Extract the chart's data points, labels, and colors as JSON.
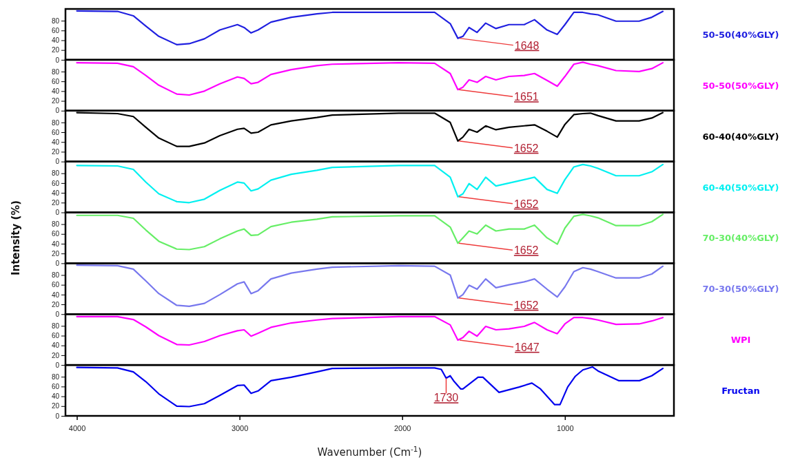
{
  "chart_data": [
    {
      "type": "line",
      "x": [
        4000,
        3750,
        3653,
        3576,
        3496,
        3386,
        3309,
        3216,
        3121,
        3013,
        2972,
        2929,
        2886,
        2807,
        2682,
        2525,
        2430,
        2021,
        1801,
        1705,
        1658,
        1627,
        1589,
        1540,
        1487,
        1424,
        1344,
        1250,
        1187,
        1110,
        1047,
        1000,
        945,
        890,
        843,
        797,
        686,
        544,
        466,
        398
      ],
      "xlim": [
        4070,
        330
      ],
      "ylim": [
        0,
        104
      ],
      "yticks": [
        0,
        20,
        40,
        60,
        80
      ],
      "tick_labels": "y",
      "legend": "right",
      "series": [
        {
          "name": "50-50(40%GLY)",
          "color": "#2020e0",
          "values": [
            100,
            99,
            90,
            69,
            48,
            31,
            33,
            43,
            61,
            72,
            66,
            55,
            61,
            77,
            87,
            94,
            97,
            97,
            97,
            74,
            44,
            48,
            66,
            56,
            75,
            64,
            72,
            72,
            82,
            61,
            52,
            72,
            97,
            97,
            94,
            92,
            79,
            79,
            87,
            99
          ]
        }
      ],
      "annotations": [
        {
          "text": "1648",
          "x": 1648,
          "y": 44
        }
      ]
    },
    {
      "type": "line",
      "x": [
        4000,
        3750,
        3653,
        3576,
        3496,
        3386,
        3309,
        3216,
        3121,
        3013,
        2972,
        2929,
        2886,
        2807,
        2682,
        2525,
        2430,
        2021,
        1801,
        1705,
        1658,
        1627,
        1589,
        1540,
        1487,
        1424,
        1344,
        1250,
        1187,
        1110,
        1047,
        1000,
        945,
        890,
        843,
        797,
        686,
        544,
        466,
        398
      ],
      "xlim": [
        4070,
        330
      ],
      "ylim": [
        0,
        104
      ],
      "yticks": [
        0,
        20,
        40,
        60,
        80
      ],
      "tick_labels": "y",
      "legend": "right",
      "series": [
        {
          "name": "50-50(50%GLY)",
          "color": "#ff00ff",
          "values": [
            98,
            97,
            90,
            72,
            52,
            34,
            32,
            40,
            55,
            69,
            66,
            55,
            58,
            74,
            84,
            92,
            95,
            98,
            97,
            76,
            43,
            48,
            63,
            58,
            70,
            63,
            70,
            72,
            76,
            62,
            50,
            70,
            95,
            99,
            95,
            92,
            82,
            80,
            86,
            98
          ]
        }
      ],
      "annotations": [
        {
          "text": "1651",
          "x": 1651,
          "y": 43
        }
      ]
    },
    {
      "type": "line",
      "x": [
        4000,
        3750,
        3653,
        3576,
        3496,
        3386,
        3309,
        3216,
        3121,
        3013,
        2972,
        2929,
        2886,
        2807,
        2682,
        2525,
        2430,
        2021,
        1801,
        1705,
        1658,
        1627,
        1589,
        1540,
        1487,
        1424,
        1344,
        1250,
        1187,
        1110,
        1047,
        1000,
        945,
        890,
        843,
        797,
        686,
        544,
        466,
        398
      ],
      "xlim": [
        4070,
        330
      ],
      "ylim": [
        0,
        104
      ],
      "yticks": [
        0,
        20,
        40,
        60,
        80
      ],
      "tick_labels": "y",
      "legend": "right",
      "series": [
        {
          "name": "60-40(40%GLY)",
          "color": "#000000",
          "values": [
            100,
            98,
            92,
            70,
            48,
            31,
            31,
            38,
            53,
            66,
            68,
            58,
            60,
            75,
            83,
            90,
            95,
            99,
            99,
            80,
            42,
            50,
            66,
            60,
            73,
            65,
            70,
            73,
            75,
            62,
            50,
            76,
            96,
            98,
            99,
            94,
            83,
            83,
            89,
            100
          ]
        }
      ],
      "annotations": [
        {
          "text": "1652",
          "x": 1652,
          "y": 42
        }
      ]
    },
    {
      "type": "line",
      "x": [
        4000,
        3750,
        3653,
        3576,
        3496,
        3386,
        3309,
        3216,
        3121,
        3013,
        2972,
        2929,
        2886,
        2807,
        2682,
        2525,
        2430,
        2021,
        1801,
        1705,
        1658,
        1627,
        1589,
        1540,
        1487,
        1424,
        1344,
        1250,
        1187,
        1110,
        1047,
        1000,
        945,
        890,
        843,
        797,
        686,
        544,
        466,
        398
      ],
      "xlim": [
        4070,
        330
      ],
      "ylim": [
        0,
        104
      ],
      "yticks": [
        0,
        20,
        40,
        60,
        80
      ],
      "tick_labels": "y",
      "legend": "right",
      "series": [
        {
          "name": "60-40(50%GLY)",
          "color": "#00f0f0",
          "values": [
            96,
            95,
            88,
            62,
            38,
            22,
            20,
            27,
            45,
            62,
            60,
            44,
            48,
            66,
            78,
            86,
            92,
            96,
            96,
            72,
            32,
            38,
            59,
            47,
            72,
            54,
            60,
            67,
            72,
            47,
            39,
            67,
            93,
            98,
            95,
            90,
            75,
            75,
            83,
            98
          ]
        }
      ],
      "annotations": [
        {
          "text": "1652",
          "x": 1652,
          "y": 32
        }
      ]
    },
    {
      "type": "line",
      "x": [
        4000,
        3750,
        3653,
        3576,
        3496,
        3386,
        3309,
        3216,
        3121,
        3013,
        2972,
        2929,
        2886,
        2807,
        2682,
        2525,
        2430,
        2021,
        1801,
        1705,
        1658,
        1627,
        1589,
        1540,
        1487,
        1424,
        1344,
        1250,
        1187,
        1110,
        1047,
        1000,
        945,
        890,
        843,
        797,
        686,
        544,
        466,
        398
      ],
      "xlim": [
        4070,
        330
      ],
      "ylim": [
        0,
        104
      ],
      "yticks": [
        0,
        20,
        40,
        60,
        80
      ],
      "tick_labels": "y",
      "legend": "right",
      "ylabel": "Intensity (%)",
      "series": [
        {
          "name": "70-30(40%GLY)",
          "color": "#66ee66",
          "values": [
            98,
            98,
            92,
            68,
            45,
            29,
            28,
            34,
            50,
            66,
            70,
            57,
            58,
            75,
            84,
            90,
            95,
            97,
            97,
            74,
            41,
            52,
            66,
            60,
            78,
            66,
            70,
            70,
            78,
            52,
            39,
            72,
            96,
            100,
            97,
            93,
            77,
            77,
            85,
            100
          ]
        }
      ],
      "annotations": [
        {
          "text": "1652",
          "x": 1652,
          "y": 41
        }
      ]
    },
    {
      "type": "line",
      "x": [
        4000,
        3750,
        3653,
        3576,
        3496,
        3386,
        3309,
        3216,
        3121,
        3013,
        2972,
        2929,
        2886,
        2807,
        2682,
        2525,
        2430,
        2021,
        1801,
        1705,
        1658,
        1627,
        1589,
        1540,
        1487,
        1424,
        1344,
        1250,
        1187,
        1110,
        1047,
        1000,
        945,
        890,
        843,
        797,
        686,
        544,
        466,
        398
      ],
      "xlim": [
        4070,
        330
      ],
      "ylim": [
        0,
        104
      ],
      "yticks": [
        0,
        20,
        40,
        60,
        80
      ],
      "tick_labels": "y",
      "legend": "right",
      "series": [
        {
          "name": "70-30(50%GLY)",
          "color": "#7878ee",
          "values": [
            100,
            99,
            92,
            68,
            42,
            18,
            16,
            22,
            40,
            62,
            66,
            42,
            48,
            72,
            84,
            92,
            96,
            99,
            98,
            80,
            33,
            40,
            59,
            51,
            72,
            54,
            60,
            66,
            72,
            51,
            35,
            56,
            87,
            95,
            92,
            87,
            74,
            74,
            82,
            98
          ]
        }
      ],
      "annotations": [
        {
          "text": "1652",
          "x": 1652,
          "y": 33
        }
      ]
    },
    {
      "type": "line",
      "x": [
        4000,
        3750,
        3653,
        3576,
        3496,
        3386,
        3309,
        3216,
        3121,
        3013,
        2972,
        2929,
        2886,
        2807,
        2682,
        2525,
        2430,
        2021,
        1801,
        1705,
        1658,
        1627,
        1589,
        1540,
        1487,
        1424,
        1344,
        1250,
        1187,
        1110,
        1047,
        1000,
        945,
        890,
        843,
        797,
        686,
        544,
        466,
        398
      ],
      "xlim": [
        4070,
        330
      ],
      "ylim": [
        0,
        104
      ],
      "yticks": [
        0,
        20,
        40,
        60,
        80
      ],
      "tick_labels": "y",
      "legend": "right",
      "series": [
        {
          "name": "WPI",
          "color": "#ff00ff",
          "values": [
            99,
            99,
            93,
            78,
            60,
            42,
            41,
            48,
            60,
            70,
            72,
            59,
            65,
            77,
            86,
            92,
            95,
            99,
            99,
            82,
            51,
            56,
            69,
            59,
            79,
            72,
            74,
            79,
            87,
            72,
            64,
            84,
            97,
            97,
            95,
            92,
            83,
            84,
            90,
            97
          ]
        }
      ],
      "annotations": [
        {
          "text": "1647",
          "x": 1647,
          "y": 51
        }
      ]
    },
    {
      "type": "line",
      "x": [
        4000,
        3750,
        3653,
        3576,
        3496,
        3386,
        3309,
        3216,
        3121,
        3013,
        2972,
        2929,
        2886,
        2807,
        2682,
        2525,
        2430,
        2021,
        1801,
        1760,
        1730,
        1705,
        1680,
        1640,
        1627,
        1534,
        1504,
        1405,
        1281,
        1203,
        1150,
        1063,
        1030,
        983,
        936,
        890,
        831,
        797,
        670,
        542,
        466,
        398
      ],
      "xlim": [
        4070,
        330
      ],
      "ylim": [
        0,
        104
      ],
      "yticks": [
        0,
        20,
        40,
        60,
        80
      ],
      "xticks": [
        4000,
        3000,
        2000,
        1000
      ],
      "legend": "right",
      "xlabel": "Wavenumber (Cm$^{-1}$)",
      "series": [
        {
          "name": "Fructan",
          "color": "#0000ee",
          "values": [
            99,
            98,
            90,
            70,
            45,
            20,
            19,
            25,
            42,
            62,
            63,
            46,
            51,
            72,
            79,
            90,
            97,
            98,
            98,
            95,
            77,
            82,
            70,
            55,
            55,
            79,
            79,
            48,
            59,
            67,
            55,
            23,
            23,
            59,
            81,
            94,
            100,
            92,
            72,
            72,
            82,
            97
          ]
        }
      ],
      "annotations": [
        {
          "text": "1730",
          "x": 1730,
          "y": 77
        }
      ]
    }
  ]
}
